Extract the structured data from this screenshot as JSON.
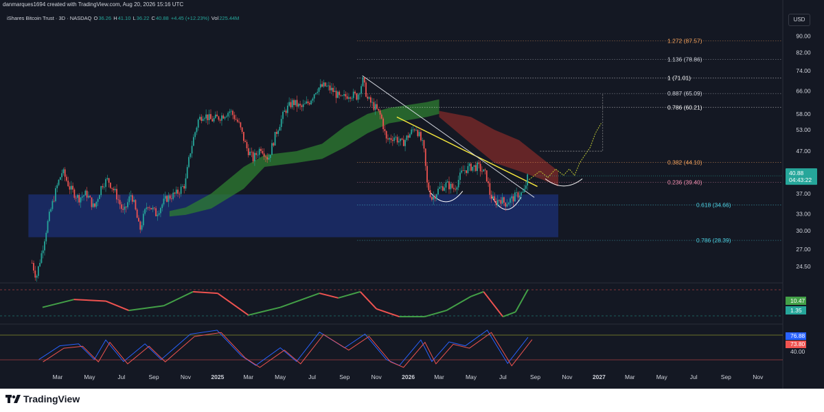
{
  "header": {
    "credit": "danmarques1694 created with TradingView.com, Aug 20, 2026 15:16 UTC"
  },
  "symbol": {
    "name": "iShares Bitcoin Trust · 3D · NASDAQ",
    "o_label": "O",
    "o": "36.26",
    "h_label": "H",
    "h": "41.10",
    "l_label": "L",
    "l": "36.22",
    "c_label": "C",
    "c": "40.88",
    "change": "+4.45 (+12.23%)",
    "vol_label": "Vol",
    "vol": "225.44M"
  },
  "currency": "USD",
  "brand": "TradingView",
  "colors": {
    "background": "#141823",
    "bull": "#26a69a",
    "bear": "#ef5350",
    "fib_orange": "#f7a35c",
    "fib_white": "#d1d4dc",
    "fib_pink": "#f48fb1",
    "fib_teal": "#4dd0e1",
    "support_box": "#1a2d6b",
    "cloud_green": "#2e7d32",
    "cloud_red": "#7f2a2a",
    "trendline_yellow": "#f5e63d",
    "trendline_white": "#d1d4dc"
  },
  "chart_data": [
    {
      "type": "candlestick",
      "x_ticks": [
        "Mar",
        "May",
        "Jul",
        "Sep",
        "Nov",
        "2025",
        "Mar",
        "May",
        "Jul",
        "Sep",
        "Nov",
        "2026",
        "Mar",
        "May",
        "Jul",
        "Sep",
        "Nov",
        "2027",
        "Mar",
        "May",
        "Jul",
        "Sep",
        "Nov"
      ],
      "y_ticks": [
        "90.00",
        "82.00",
        "74.00",
        "66.00",
        "58.00",
        "53.00",
        "47.00",
        "40.88",
        "37.00",
        "33.00",
        "30.00",
        "27.00",
        "24.50"
      ],
      "y_scale": "log",
      "ylim": [
        22.5,
        96
      ],
      "current_price": "40.88",
      "countdown": "04:43:22",
      "price_path": [
        [
          "2024-01-12",
          25
        ],
        [
          "2024-01-20",
          23
        ],
        [
          "2024-02-01",
          27
        ],
        [
          "2024-02-10",
          31
        ],
        [
          "2024-02-20",
          35
        ],
        [
          "2024-03-01",
          39
        ],
        [
          "2024-03-10",
          42
        ],
        [
          "2024-03-25",
          38
        ],
        [
          "2024-04-10",
          36
        ],
        [
          "2024-04-25",
          37
        ],
        [
          "2024-05-10",
          34
        ],
        [
          "2024-05-25",
          39
        ],
        [
          "2024-06-05",
          40
        ],
        [
          "2024-06-20",
          37
        ],
        [
          "2024-07-05",
          33
        ],
        [
          "2024-07-20",
          37
        ],
        [
          "2024-08-05",
          30
        ],
        [
          "2024-08-20",
          35
        ],
        [
          "2024-09-05",
          33
        ],
        [
          "2024-09-25",
          36
        ],
        [
          "2024-10-15",
          37
        ],
        [
          "2024-10-31",
          39
        ],
        [
          "2024-11-10",
          47
        ],
        [
          "2024-11-25",
          56
        ],
        [
          "2024-12-05",
          58
        ],
        [
          "2024-12-20",
          56
        ],
        [
          "2025-01-05",
          57
        ],
        [
          "2025-01-25",
          59
        ],
        [
          "2025-02-10",
          55
        ],
        [
          "2025-02-25",
          48
        ],
        [
          "2025-03-10",
          45
        ],
        [
          "2025-03-25",
          48
        ],
        [
          "2025-04-08",
          45
        ],
        [
          "2025-04-25",
          53
        ],
        [
          "2025-05-10",
          59
        ],
        [
          "2025-05-25",
          62
        ],
        [
          "2025-06-10",
          60
        ],
        [
          "2025-06-25",
          62
        ],
        [
          "2025-07-10",
          67
        ],
        [
          "2025-07-25",
          68
        ],
        [
          "2025-08-10",
          66
        ],
        [
          "2025-08-25",
          63
        ],
        [
          "2025-09-10",
          65
        ],
        [
          "2025-09-25",
          64
        ],
        [
          "2025-10-06",
          70
        ],
        [
          "2025-10-15",
          63
        ],
        [
          "2025-10-30",
          60
        ],
        [
          "2025-11-10",
          57
        ],
        [
          "2025-11-20",
          50
        ],
        [
          "2025-12-05",
          51
        ],
        [
          "2025-12-20",
          49
        ],
        [
          "2026-01-05",
          52
        ],
        [
          "2026-01-15",
          54
        ],
        [
          "2026-01-30",
          48
        ],
        [
          "2026-02-06",
          39
        ],
        [
          "2026-02-15",
          36
        ],
        [
          "2026-03-01",
          38
        ],
        [
          "2026-03-15",
          39
        ],
        [
          "2026-03-30",
          38
        ],
        [
          "2026-04-15",
          42
        ],
        [
          "2026-05-01",
          43
        ],
        [
          "2026-05-15",
          43
        ],
        [
          "2026-05-30",
          41
        ],
        [
          "2026-06-06",
          37
        ],
        [
          "2026-06-15",
          35
        ],
        [
          "2026-06-25",
          36
        ],
        [
          "2026-07-05",
          35
        ],
        [
          "2026-07-20",
          36
        ],
        [
          "2026-08-01",
          37
        ],
        [
          "2026-08-10",
          37
        ],
        [
          "2026-08-18",
          40.88
        ]
      ],
      "projection_path": [
        [
          "2026-08-20",
          40
        ],
        [
          "2026-09-10",
          42
        ],
        [
          "2026-09-25",
          40.5
        ],
        [
          "2026-10-10",
          42.5
        ],
        [
          "2026-10-25",
          41
        ],
        [
          "2026-11-05",
          42.5
        ],
        [
          "2026-11-15",
          41
        ],
        [
          "2026-11-25",
          44
        ],
        [
          "2026-12-05",
          46
        ],
        [
          "2026-12-15",
          48
        ],
        [
          "2026-12-25",
          52
        ],
        [
          "2027-01-05",
          55
        ]
      ],
      "projection_target_line": [
        [
          "2026-09-10",
          47
        ],
        [
          "2027-01-08",
          47
        ],
        [
          "2027-01-08",
          65
        ]
      ],
      "fib_levels": [
        {
          "label": "1.272 (87.57)",
          "value": 87.57,
          "color": "#f7a35c"
        },
        {
          "label": "1.136 (78.86)",
          "value": 78.86,
          "color": "#d1d4dc"
        },
        {
          "label": "1 (71.01)",
          "value": 71.01,
          "color": "#ffffff"
        },
        {
          "label": "0.887 (65.09)",
          "value": 65.09,
          "color": "#d1d4dc"
        },
        {
          "label": "0.786 (60.21)",
          "value": 60.21,
          "color": "#ffffff"
        },
        {
          "label": "0.382 (44.10)",
          "value": 44.1,
          "color": "#f7a35c"
        },
        {
          "label": "0.236 (39.40)",
          "value": 39.4,
          "color": "#f48fb1"
        },
        {
          "label": "0.618 (34.66)",
          "value": 34.66,
          "color": "#4dd0e1"
        },
        {
          "label": "0.786 (28.39)",
          "value": 28.39,
          "color": "#4dd0e1"
        }
      ],
      "support_zone": {
        "from": "2024-01-05",
        "to": "2026-10-15",
        "low": 28.9,
        "high": 36.8
      },
      "cloud_green": [
        [
          "2024-10-01",
          33.5
        ],
        [
          "2024-11-01",
          34.2
        ],
        [
          "2024-12-20",
          37
        ],
        [
          "2025-02-20",
          43
        ],
        [
          "2025-04-01",
          46
        ],
        [
          "2025-06-01",
          47
        ],
        [
          "2025-07-20",
          49
        ],
        [
          "2025-09-01",
          54
        ],
        [
          "2025-10-15",
          58
        ],
        [
          "2025-11-25",
          60
        ],
        [
          "2026-02-05",
          62
        ],
        [
          "2026-03-01",
          63
        ]
      ],
      "cloud_green_low": [
        [
          "2024-10-01",
          32.5
        ],
        [
          "2024-11-01",
          32.8
        ],
        [
          "2024-12-20",
          34
        ],
        [
          "2025-02-20",
          38
        ],
        [
          "2025-04-01",
          43
        ],
        [
          "2025-06-01",
          44
        ],
        [
          "2025-07-20",
          45
        ],
        [
          "2025-09-01",
          48
        ],
        [
          "2025-10-15",
          52
        ],
        [
          "2025-11-25",
          55
        ],
        [
          "2026-02-05",
          57
        ],
        [
          "2026-03-01",
          58
        ]
      ],
      "cloud_red": [
        [
          "2026-03-01",
          59
        ],
        [
          "2026-05-01",
          57
        ],
        [
          "2026-06-15",
          53
        ],
        [
          "2026-08-01",
          50
        ],
        [
          "2026-09-15",
          45
        ],
        [
          "2026-10-15",
          42
        ]
      ],
      "cloud_red_low": [
        [
          "2026-03-01",
          57
        ],
        [
          "2026-05-01",
          49
        ],
        [
          "2026-06-15",
          44
        ],
        [
          "2026-08-01",
          42
        ],
        [
          "2026-09-15",
          40
        ],
        [
          "2026-10-15",
          38.5
        ]
      ],
      "yellow_trendline": [
        [
          "2025-12-10",
          57
        ],
        [
          "2026-09-05",
          38.5
        ]
      ],
      "white_trendline": [
        [
          "2025-10-05",
          72
        ],
        [
          "2026-08-30",
          36.2
        ]
      ],
      "arcs": [
        {
          "from": "2026-02-10",
          "to": "2026-04-15",
          "level": 37.5,
          "depth": 35.3,
          "color": "#ffffff"
        },
        {
          "from": "2026-06-10",
          "to": "2026-08-05",
          "level": 36.3,
          "depth": 33.8,
          "color": "#ffffff"
        },
        {
          "from": "2026-09-20",
          "to": "2026-11-30",
          "level": 40.2,
          "depth": 38.6,
          "color": "#ffffff"
        }
      ]
    },
    {
      "type": "line",
      "name": "momentum-oscillator",
      "values_latest": [
        "10.47",
        "1.35"
      ],
      "colors": [
        "#43a047",
        "#ef5350"
      ],
      "series": [
        {
          "name": "",
          "points": [
            [
              "2024-02-01",
              -1
            ],
            [
              "2024-04-01",
              4
            ],
            [
              "2024-06-01",
              3
            ],
            [
              "2024-07-15",
              -3
            ],
            [
              "2024-09-20",
              0
            ],
            [
              "2024-11-15",
              9
            ],
            [
              "2025-01-01",
              8
            ],
            [
              "2025-03-01",
              -6
            ],
            [
              "2025-05-01",
              -1
            ],
            [
              "2025-07-15",
              8
            ],
            [
              "2025-08-20",
              5
            ],
            [
              "2025-10-01",
              9
            ],
            [
              "2025-11-01",
              -2
            ],
            [
              "2025-12-15",
              -7
            ],
            [
              "2026-02-01",
              -7
            ],
            [
              "2026-03-15",
              -3
            ],
            [
              "2026-05-01",
              6
            ],
            [
              "2026-05-25",
              9
            ],
            [
              "2026-07-01",
              -7
            ],
            [
              "2026-07-25",
              -4
            ],
            [
              "2026-08-18",
              10.47
            ]
          ]
        }
      ]
    },
    {
      "type": "line",
      "name": "stochastic-rsi",
      "values_latest": [
        "76.88",
        "73.80",
        "40.00"
      ],
      "colors": [
        "#2962ff",
        "#ef5350"
      ],
      "series": [
        {
          "name": "",
          "points": [
            [
              "2024-01-25",
              20
            ],
            [
              "2024-03-05",
              55
            ],
            [
              "2024-04-10",
              60
            ],
            [
              "2024-05-10",
              20
            ],
            [
              "2024-06-01",
              70
            ],
            [
              "2024-07-05",
              15
            ],
            [
              "2024-08-15",
              60
            ],
            [
              "2024-09-15",
              20
            ],
            [
              "2024-11-10",
              85
            ],
            [
              "2024-12-31",
              95
            ],
            [
              "2025-02-15",
              30
            ],
            [
              "2025-03-15",
              5
            ],
            [
              "2025-05-01",
              50
            ],
            [
              "2025-06-01",
              15
            ],
            [
              "2025-07-15",
              90
            ],
            [
              "2025-09-01",
              50
            ],
            [
              "2025-10-10",
              85
            ],
            [
              "2025-11-20",
              20
            ],
            [
              "2025-12-15",
              5
            ],
            [
              "2026-01-25",
              70
            ],
            [
              "2026-02-15",
              15
            ],
            [
              "2026-03-20",
              65
            ],
            [
              "2026-04-20",
              55
            ],
            [
              "2026-06-01",
              95
            ],
            [
              "2026-07-10",
              10
            ],
            [
              "2026-08-18",
              76.88
            ]
          ]
        }
      ]
    }
  ]
}
